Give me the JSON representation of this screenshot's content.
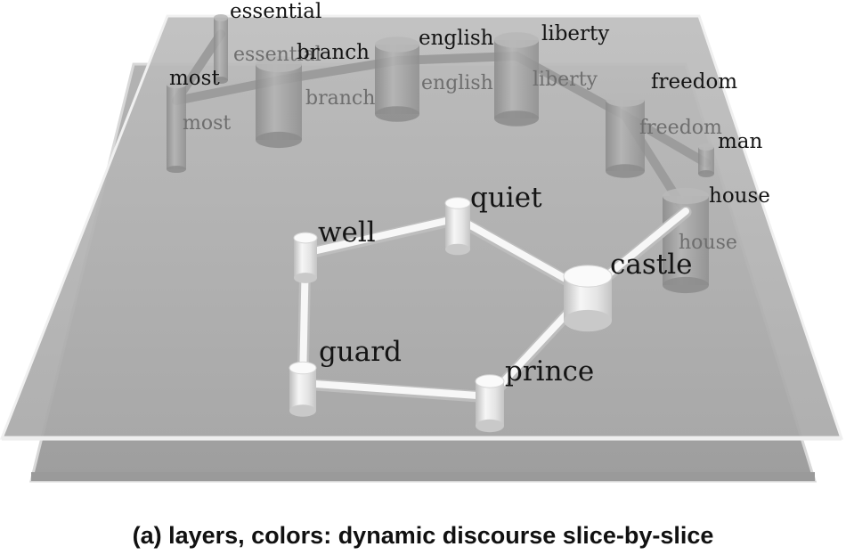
{
  "caption": "(a) layers, colors: dynamic discourse slice-by-slice",
  "back_layer": {
    "nodes": [
      {
        "id": "essential",
        "label": "essential",
        "under_label": "essential"
      },
      {
        "id": "most",
        "label": "most",
        "under_label": "most"
      },
      {
        "id": "branch",
        "label": "branch",
        "under_label": "branch"
      },
      {
        "id": "english",
        "label": "english",
        "under_label": "english"
      },
      {
        "id": "liberty",
        "label": "liberty",
        "under_label": "liberty"
      },
      {
        "id": "freedom",
        "label": "freedom",
        "under_label": "freedom"
      },
      {
        "id": "man",
        "label": "man",
        "under_label": ""
      },
      {
        "id": "house",
        "label": "house",
        "under_label": "house"
      }
    ],
    "edges": [
      [
        "most",
        "branch"
      ],
      [
        "branch",
        "english"
      ],
      [
        "english",
        "liberty"
      ],
      [
        "liberty",
        "freedom"
      ],
      [
        "freedom",
        "man"
      ],
      [
        "freedom",
        "house"
      ],
      [
        "essential",
        "most"
      ]
    ]
  },
  "front_layer": {
    "nodes": [
      {
        "id": "well",
        "label": "well"
      },
      {
        "id": "quiet",
        "label": "quiet"
      },
      {
        "id": "castle",
        "label": "castle"
      },
      {
        "id": "prince",
        "label": "prince"
      },
      {
        "id": "guard",
        "label": "guard"
      }
    ],
    "edges": [
      [
        "well",
        "quiet"
      ],
      [
        "quiet",
        "castle"
      ],
      [
        "castle",
        "prince"
      ],
      [
        "prince",
        "guard"
      ],
      [
        "guard",
        "well"
      ],
      [
        "castle",
        "house"
      ]
    ]
  },
  "colors": {
    "background": "#ffffff",
    "plate_top": "#c7c7c7",
    "plate_bottom": "#b9b9b9",
    "node": "#ececec",
    "node_back": "#a9a9a9"
  }
}
